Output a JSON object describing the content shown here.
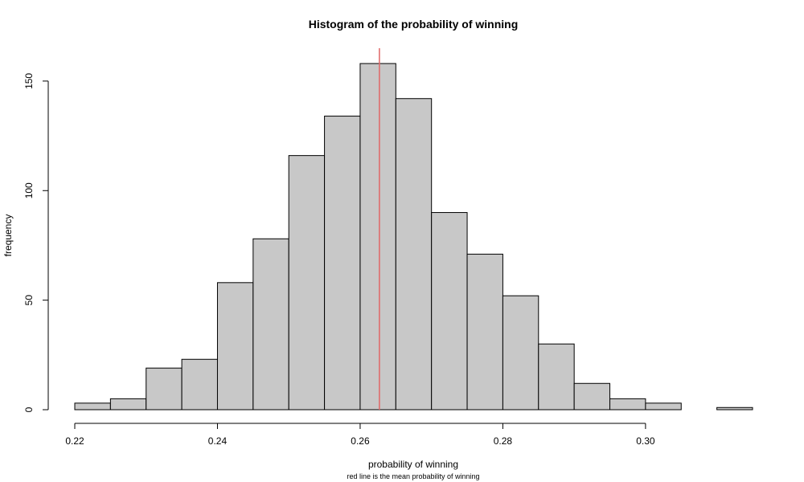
{
  "chart_data": {
    "type": "bar",
    "title": "Histogram of the probability of winning",
    "xlabel": "probability of winning",
    "ylabel": "frequency",
    "subtitle": "red line is the mean probability of winning",
    "bins": [
      [
        0.22,
        0.225
      ],
      [
        0.225,
        0.23
      ],
      [
        0.23,
        0.235
      ],
      [
        0.235,
        0.24
      ],
      [
        0.24,
        0.245
      ],
      [
        0.245,
        0.25
      ],
      [
        0.25,
        0.255
      ],
      [
        0.255,
        0.26
      ],
      [
        0.26,
        0.265
      ],
      [
        0.265,
        0.27
      ],
      [
        0.27,
        0.275
      ],
      [
        0.275,
        0.28
      ],
      [
        0.28,
        0.285
      ],
      [
        0.285,
        0.29
      ],
      [
        0.29,
        0.295
      ],
      [
        0.295,
        0.3
      ],
      [
        0.3,
        0.305
      ],
      [
        0.305,
        0.31
      ],
      [
        0.31,
        0.315
      ]
    ],
    "values": [
      3,
      5,
      19,
      23,
      58,
      78,
      116,
      134,
      158,
      142,
      90,
      71,
      52,
      30,
      12,
      5,
      3,
      0,
      1
    ],
    "xlim": [
      0.22,
      0.315
    ],
    "ylim": [
      0,
      165
    ],
    "x_ticks": [
      "0.22",
      "0.24",
      "0.26",
      "0.28",
      "0.30"
    ],
    "y_ticks": [
      "0",
      "50",
      "100",
      "150"
    ],
    "mean_line_x": 0.2627,
    "grid": false,
    "legend": "none",
    "colors": {
      "bar_fill": "#c8c8c8",
      "bar_stroke": "#000000",
      "mean_line": "#e06666"
    }
  }
}
